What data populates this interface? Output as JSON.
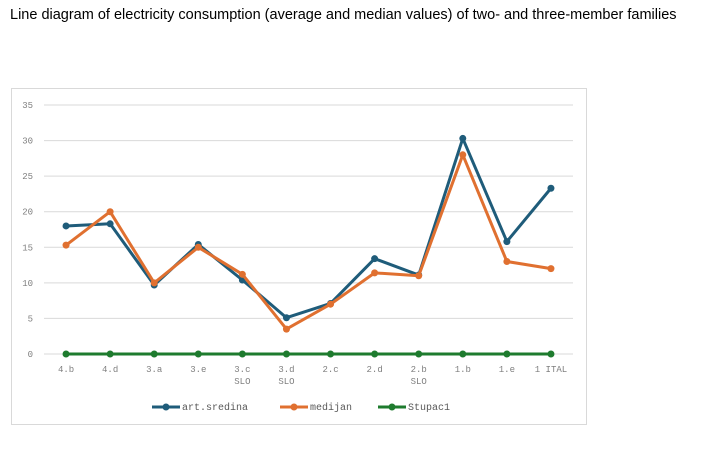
{
  "caption": "Line diagram of electricity consumption (average and median values) of two- and three-member families",
  "chart_data": {
    "type": "line",
    "title": "",
    "xlabel": "",
    "ylabel": "",
    "ylim": [
      0,
      35
    ],
    "yticks": [
      0,
      5,
      10,
      15,
      20,
      25,
      30,
      35
    ],
    "grid": true,
    "legend_position": "bottom",
    "categories": [
      [
        "4.b"
      ],
      [
        "4.d"
      ],
      [
        "3.a"
      ],
      [
        "3.e"
      ],
      [
        "3.c",
        "SLO"
      ],
      [
        "3.d",
        "SLO"
      ],
      [
        "2.c"
      ],
      [
        "2.d"
      ],
      [
        "2.b",
        "SLO"
      ],
      [
        "1.b"
      ],
      [
        "1.e"
      ],
      [
        "1 ITAL"
      ]
    ],
    "series": [
      {
        "name": "art.sredina",
        "color": "#1f5c7a",
        "values": [
          18.0,
          18.3,
          9.7,
          15.4,
          10.4,
          5.1,
          7.1,
          13.4,
          11.1,
          30.3,
          15.8,
          23.3
        ]
      },
      {
        "name": "medijan",
        "color": "#e07030",
        "values": [
          15.3,
          20.0,
          10.0,
          15.0,
          11.2,
          3.5,
          7.0,
          11.4,
          11.0,
          28.0,
          13.0,
          12.0
        ]
      },
      {
        "name": "Stupac1",
        "color": "#1e7b2e",
        "values": [
          0,
          0,
          0,
          0,
          0,
          0,
          0,
          0,
          0,
          0,
          0,
          0
        ]
      }
    ]
  }
}
